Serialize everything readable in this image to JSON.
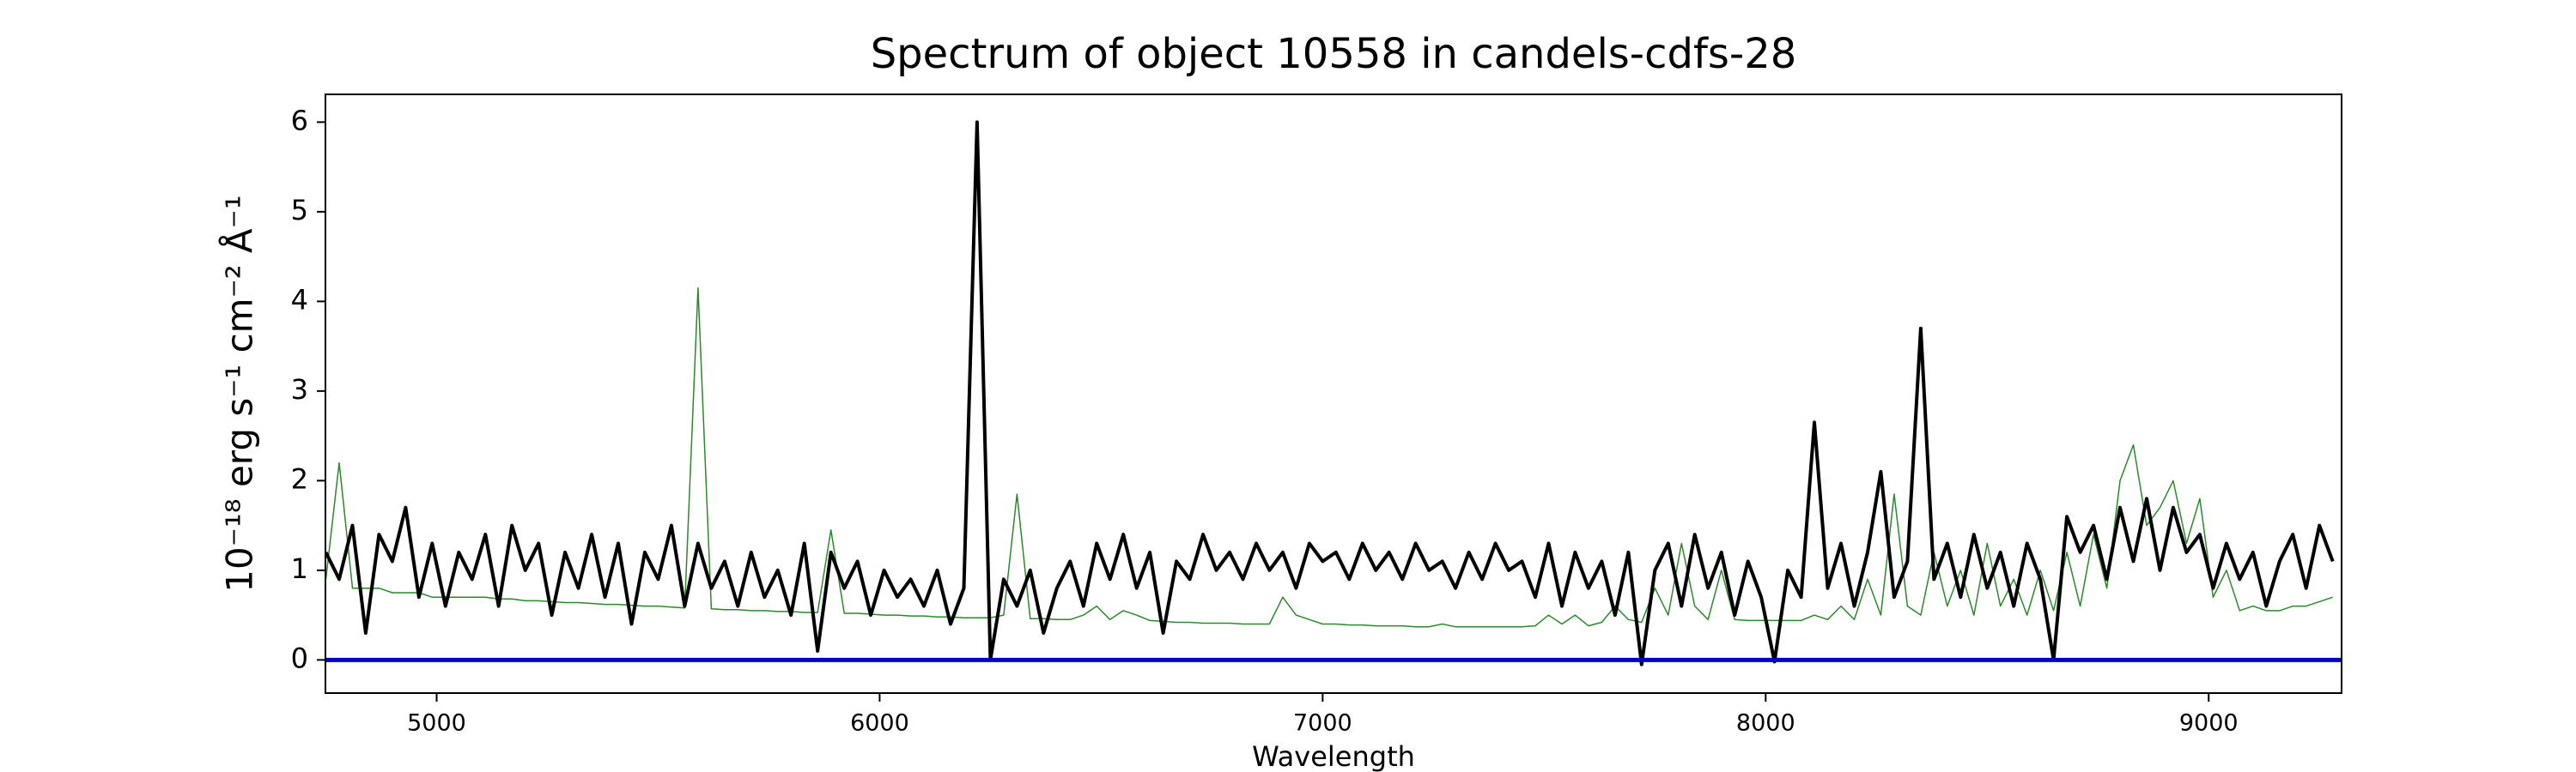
{
  "chart_data": {
    "type": "line",
    "title": "Spectrum of object 10558 in candels-cdfs-28",
    "xlabel": "Wavelength",
    "ylabel": "10⁻¹⁸ erg s⁻¹ cm⁻² Å⁻¹",
    "x": [
      4750,
      4780,
      4810,
      4840,
      4870,
      4900,
      4930,
      4960,
      4990,
      5020,
      5050,
      5080,
      5110,
      5140,
      5170,
      5200,
      5230,
      5260,
      5290,
      5320,
      5350,
      5380,
      5410,
      5440,
      5470,
      5500,
      5530,
      5560,
      5590,
      5620,
      5650,
      5680,
      5710,
      5740,
      5770,
      5800,
      5830,
      5860,
      5890,
      5920,
      5950,
      5980,
      6010,
      6040,
      6070,
      6100,
      6130,
      6160,
      6190,
      6220,
      6250,
      6280,
      6310,
      6340,
      6370,
      6400,
      6430,
      6460,
      6490,
      6520,
      6550,
      6580,
      6610,
      6640,
      6670,
      6700,
      6730,
      6760,
      6790,
      6820,
      6850,
      6880,
      6910,
      6940,
      6970,
      7000,
      7030,
      7060,
      7090,
      7120,
      7150,
      7180,
      7210,
      7240,
      7270,
      7300,
      7330,
      7360,
      7390,
      7420,
      7450,
      7480,
      7510,
      7540,
      7570,
      7600,
      7630,
      7660,
      7690,
      7720,
      7750,
      7780,
      7810,
      7840,
      7870,
      7900,
      7930,
      7960,
      7990,
      8020,
      8050,
      8080,
      8110,
      8140,
      8170,
      8200,
      8230,
      8260,
      8290,
      8320,
      8350,
      8380,
      8410,
      8440,
      8470,
      8500,
      8530,
      8560,
      8590,
      8620,
      8650,
      8680,
      8710,
      8740,
      8770,
      8800,
      8830,
      8860,
      8890,
      8920,
      8950,
      8980,
      9010,
      9040,
      9070,
      9100,
      9130,
      9160,
      9190,
      9220,
      9250,
      9280
    ],
    "series": [
      {
        "color": "#2a8a2a",
        "linewidth": 1.5,
        "values": [
          0.9,
          2.2,
          0.8,
          0.8,
          0.8,
          0.75,
          0.75,
          0.75,
          0.7,
          0.7,
          0.7,
          0.7,
          0.7,
          0.68,
          0.68,
          0.66,
          0.66,
          0.65,
          0.64,
          0.64,
          0.63,
          0.62,
          0.62,
          0.61,
          0.6,
          0.6,
          0.59,
          0.58,
          4.15,
          0.57,
          0.56,
          0.56,
          0.55,
          0.55,
          0.54,
          0.54,
          0.53,
          0.53,
          1.45,
          0.52,
          0.52,
          0.51,
          0.5,
          0.5,
          0.49,
          0.49,
          0.48,
          0.48,
          0.47,
          0.47,
          0.47,
          0.5,
          1.85,
          0.46,
          0.46,
          0.45,
          0.45,
          0.5,
          0.6,
          0.45,
          0.55,
          0.5,
          0.44,
          0.43,
          0.42,
          0.42,
          0.41,
          0.41,
          0.41,
          0.4,
          0.4,
          0.4,
          0.7,
          0.5,
          0.45,
          0.4,
          0.4,
          0.39,
          0.39,
          0.38,
          0.38,
          0.38,
          0.37,
          0.37,
          0.4,
          0.37,
          0.37,
          0.37,
          0.37,
          0.37,
          0.37,
          0.38,
          0.5,
          0.4,
          0.5,
          0.38,
          0.42,
          0.6,
          0.45,
          0.42,
          0.8,
          0.5,
          1.3,
          0.6,
          0.45,
          1.0,
          0.45,
          0.44,
          0.44,
          0.44,
          0.44,
          0.44,
          0.5,
          0.45,
          0.6,
          0.45,
          0.9,
          0.5,
          1.85,
          0.6,
          0.5,
          1.2,
          0.6,
          1.0,
          0.5,
          1.3,
          0.6,
          0.9,
          0.5,
          1.0,
          0.55,
          1.2,
          0.6,
          1.4,
          0.8,
          2.0,
          2.4,
          1.5,
          1.7,
          2.0,
          1.3,
          1.8,
          0.7,
          1.0,
          0.55,
          0.6,
          0.55,
          0.55,
          0.6,
          0.6,
          0.65,
          0.7
        ]
      },
      {
        "color": "#000000",
        "linewidth": 4,
        "values": [
          1.2,
          0.9,
          1.5,
          0.3,
          1.4,
          1.1,
          1.7,
          0.7,
          1.3,
          0.6,
          1.2,
          0.9,
          1.4,
          0.6,
          1.5,
          1.0,
          1.3,
          0.5,
          1.2,
          0.8,
          1.4,
          0.7,
          1.3,
          0.4,
          1.2,
          0.9,
          1.5,
          0.6,
          1.3,
          0.8,
          1.1,
          0.6,
          1.2,
          0.7,
          1.0,
          0.5,
          1.3,
          0.1,
          1.2,
          0.8,
          1.1,
          0.5,
          1.0,
          0.7,
          0.9,
          0.6,
          1.0,
          0.4,
          0.8,
          6.0,
          0.0,
          0.9,
          0.6,
          1.0,
          0.3,
          0.8,
          1.1,
          0.6,
          1.3,
          0.9,
          1.4,
          0.8,
          1.2,
          0.3,
          1.1,
          0.9,
          1.4,
          1.0,
          1.2,
          0.9,
          1.3,
          1.0,
          1.2,
          0.8,
          1.3,
          1.1,
          1.2,
          0.9,
          1.3,
          1.0,
          1.2,
          0.9,
          1.3,
          1.0,
          1.1,
          0.8,
          1.2,
          0.9,
          1.3,
          1.0,
          1.1,
          0.7,
          1.3,
          0.6,
          1.2,
          0.8,
          1.1,
          0.5,
          1.2,
          -0.05,
          1.0,
          1.3,
          0.6,
          1.4,
          0.8,
          1.2,
          0.5,
          1.1,
          0.7,
          -0.02,
          1.0,
          0.7,
          2.65,
          0.8,
          1.3,
          0.6,
          1.2,
          2.1,
          0.7,
          1.1,
          3.7,
          0.9,
          1.3,
          0.7,
          1.4,
          0.8,
          1.2,
          0.6,
          1.3,
          0.9,
          0.0,
          1.6,
          1.2,
          1.5,
          0.9,
          1.7,
          1.1,
          1.8,
          1.0,
          1.7,
          1.2,
          1.4,
          0.8,
          1.3,
          0.9,
          1.2,
          0.6,
          1.1,
          1.4,
          0.8,
          1.5,
          1.1
        ]
      }
    ],
    "zero_line": {
      "y": 0,
      "color": "#0000cc"
    },
    "xlim": [
      4749,
      9300
    ],
    "ylim": [
      -0.37,
      6.31
    ],
    "xticks": [
      5000,
      6000,
      7000,
      8000,
      9000
    ],
    "yticks": [
      0,
      1,
      2,
      3,
      4,
      5,
      6
    ],
    "grid": false
  }
}
